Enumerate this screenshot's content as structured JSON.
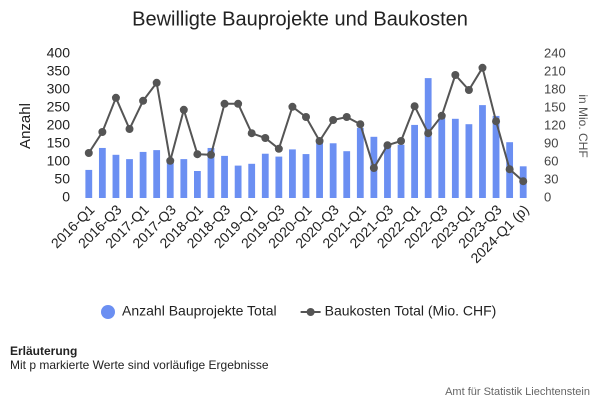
{
  "chart_data": {
    "type": "bar-line",
    "title": "Bewilligte Bauprojekte und Baukosten",
    "ylabel": "Anzahl",
    "y2label": "in Mio. CHF",
    "categories": [
      "2016-Q1",
      null,
      "2016-Q3",
      null,
      "2017-Q1",
      null,
      "2017-Q3",
      null,
      "2018-Q1",
      null,
      "2018-Q3",
      null,
      "2019-Q1",
      null,
      "2019-Q3",
      null,
      "2020-Q1",
      null,
      "2020-Q3",
      null,
      "2021-Q1",
      null,
      "2021-Q3",
      null,
      "2022-Q1",
      null,
      "2022-Q3",
      null,
      "2023-Q1",
      null,
      "2023-Q3",
      null,
      "2024-Q1 (p)"
    ],
    "series": [
      {
        "name": "Anzahl Bauprojekte Total",
        "color": "#6b8ff2",
        "kind": "bar",
        "values": [
          78,
          139,
          120,
          108,
          128,
          133,
          110,
          108,
          75,
          139,
          117,
          90,
          95,
          123,
          115,
          135,
          122,
          160,
          152,
          130,
          195,
          170,
          148,
          148,
          203,
          333,
          222,
          220,
          205,
          258,
          228,
          155,
          88
        ]
      },
      {
        "name": "Baukosten Total (Mio. CHF)",
        "color": "#555555",
        "kind": "line",
        "axis": "y2",
        "values": [
          75,
          110,
          167,
          115,
          162,
          192,
          62,
          147,
          73,
          72,
          157,
          157,
          108,
          100,
          82,
          152,
          135,
          95,
          130,
          135,
          123,
          50,
          88,
          95,
          153,
          108,
          137,
          205,
          180,
          217,
          128,
          48,
          28
        ]
      }
    ],
    "ylim": [
      0,
      400
    ],
    "yticks": [
      0,
      50,
      100,
      150,
      200,
      250,
      300,
      350,
      400
    ],
    "y2lim": [
      0,
      240
    ],
    "y2ticks": [
      0,
      30,
      60,
      90,
      120,
      150,
      180,
      210,
      240
    ],
    "grid": false,
    "legend": "bottom",
    "note_title": "Erläuterung",
    "note": "Mit p markierte Werte sind vorläufige Ergebnisse",
    "source": "Amt für Statistik Liechtenstein"
  }
}
